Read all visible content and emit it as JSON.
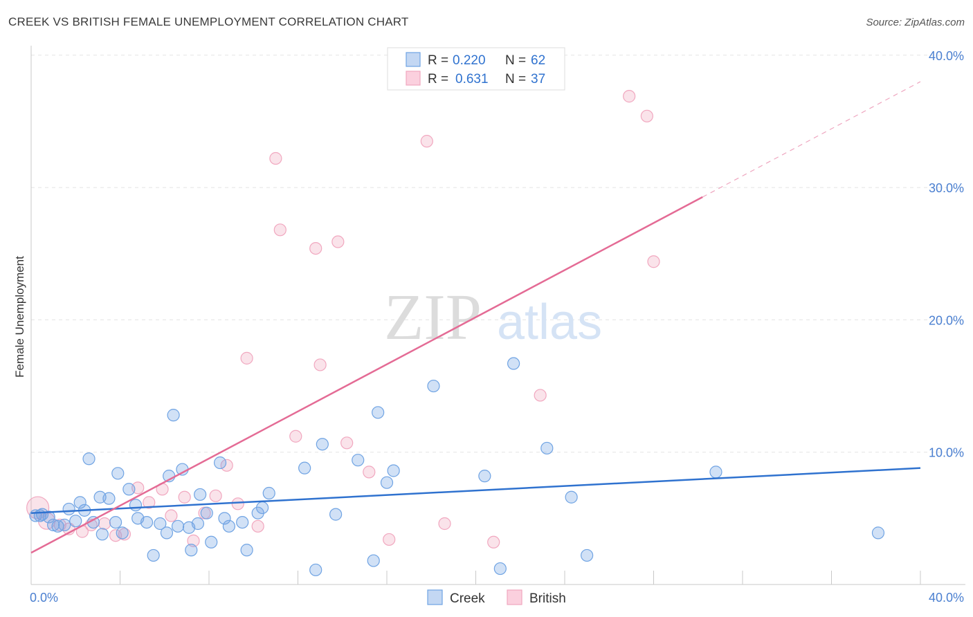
{
  "header": {
    "title": "CREEK VS BRITISH FEMALE UNEMPLOYMENT CORRELATION CHART",
    "source": "Source: ZipAtlas.com"
  },
  "watermark": {
    "zip": "ZIP",
    "atlas": "atlas"
  },
  "colors": {
    "creek": "#6fa3e3",
    "creek_line": "#2f72cf",
    "british": "#f1a7bf",
    "british_line": "#e46b95",
    "tick": "#4a7fd0"
  },
  "legend": {
    "rows": [
      {
        "r_label": "R =",
        "r_value": "0.220",
        "n_label": "N =",
        "n_value": "62"
      },
      {
        "r_label": "R =",
        "r_value": "0.631",
        "n_label": "N =",
        "n_value": "37"
      }
    ]
  },
  "chart_data": {
    "type": "scatter",
    "title": "CREEK VS BRITISH FEMALE UNEMPLOYMENT CORRELATION CHART",
    "xlabel": "",
    "ylabel": "Female Unemployment",
    "xlim": [
      0,
      40
    ],
    "ylim": [
      0,
      41
    ],
    "x_tick_labels": [
      {
        "value": 0,
        "label": "0.0%"
      },
      {
        "value": 40,
        "label": "40.0%"
      }
    ],
    "y_tick_labels": [
      {
        "value": 10,
        "label": "10.0%"
      },
      {
        "value": 20,
        "label": "20.0%"
      },
      {
        "value": 30,
        "label": "30.0%"
      },
      {
        "value": 40,
        "label": "40.0%"
      }
    ],
    "grid": true,
    "legend_position": "bottom",
    "series": [
      {
        "name": "Creek",
        "r": 0.22,
        "n": 62,
        "trend": {
          "x0": 0,
          "y0": 5.4,
          "x1": 40,
          "y1": 8.8
        },
        "points": [
          {
            "x": 0.2,
            "y": 5.2
          },
          {
            "x": 0.5,
            "y": 5.3
          },
          {
            "x": 0.8,
            "y": 5.1
          },
          {
            "x": 1.0,
            "y": 4.5
          },
          {
            "x": 1.5,
            "y": 4.5
          },
          {
            "x": 1.7,
            "y": 5.7
          },
          {
            "x": 2.0,
            "y": 4.8
          },
          {
            "x": 2.2,
            "y": 6.2
          },
          {
            "x": 2.4,
            "y": 5.6
          },
          {
            "x": 2.6,
            "y": 9.5
          },
          {
            "x": 2.8,
            "y": 4.7
          },
          {
            "x": 3.1,
            "y": 6.6
          },
          {
            "x": 3.2,
            "y": 3.8
          },
          {
            "x": 3.5,
            "y": 6.5
          },
          {
            "x": 3.8,
            "y": 4.7
          },
          {
            "x": 3.9,
            "y": 8.4
          },
          {
            "x": 4.1,
            "y": 3.9
          },
          {
            "x": 4.4,
            "y": 7.2
          },
          {
            "x": 4.7,
            "y": 6.0
          },
          {
            "x": 4.8,
            "y": 5.0
          },
          {
            "x": 5.2,
            "y": 4.7
          },
          {
            "x": 5.5,
            "y": 2.2
          },
          {
            "x": 5.8,
            "y": 4.6
          },
          {
            "x": 6.1,
            "y": 3.9
          },
          {
            "x": 6.2,
            "y": 8.2
          },
          {
            "x": 6.4,
            "y": 12.8
          },
          {
            "x": 6.6,
            "y": 4.4
          },
          {
            "x": 6.8,
            "y": 8.7
          },
          {
            "x": 7.1,
            "y": 4.3
          },
          {
            "x": 7.2,
            "y": 2.6
          },
          {
            "x": 7.5,
            "y": 4.6
          },
          {
            "x": 7.6,
            "y": 6.8
          },
          {
            "x": 7.9,
            "y": 5.4
          },
          {
            "x": 8.1,
            "y": 3.2
          },
          {
            "x": 8.5,
            "y": 9.2
          },
          {
            "x": 8.7,
            "y": 5.0
          },
          {
            "x": 8.9,
            "y": 4.4
          },
          {
            "x": 9.5,
            "y": 4.7
          },
          {
            "x": 9.7,
            "y": 2.6
          },
          {
            "x": 10.2,
            "y": 5.4
          },
          {
            "x": 10.4,
            "y": 5.8
          },
          {
            "x": 10.7,
            "y": 6.9
          },
          {
            "x": 12.3,
            "y": 8.8
          },
          {
            "x": 12.8,
            "y": 1.1
          },
          {
            "x": 13.1,
            "y": 10.6
          },
          {
            "x": 13.7,
            "y": 5.3
          },
          {
            "x": 14.7,
            "y": 9.4
          },
          {
            "x": 15.4,
            "y": 1.8
          },
          {
            "x": 15.6,
            "y": 13.0
          },
          {
            "x": 16.0,
            "y": 7.7
          },
          {
            "x": 16.3,
            "y": 8.6
          },
          {
            "x": 18.1,
            "y": 15.0
          },
          {
            "x": 20.4,
            "y": 8.2
          },
          {
            "x": 21.1,
            "y": 1.2
          },
          {
            "x": 21.7,
            "y": 16.7
          },
          {
            "x": 23.2,
            "y": 10.3
          },
          {
            "x": 24.3,
            "y": 6.6
          },
          {
            "x": 25.0,
            "y": 2.2
          },
          {
            "x": 30.8,
            "y": 8.5
          },
          {
            "x": 38.1,
            "y": 3.9
          },
          {
            "x": 0.4,
            "y": 5.2
          },
          {
            "x": 1.2,
            "y": 4.4
          }
        ]
      },
      {
        "name": "British",
        "r": 0.631,
        "n": 37,
        "trend": {
          "x0": 0,
          "y0": 2.4,
          "x1": 40,
          "y1": 38.0
        },
        "trend_solid_until_x": 30.2,
        "points": [
          {
            "x": 0.3,
            "y": 5.8
          },
          {
            "x": 0.7,
            "y": 4.8
          },
          {
            "x": 1.3,
            "y": 4.5
          },
          {
            "x": 1.7,
            "y": 4.2
          },
          {
            "x": 2.3,
            "y": 4.0
          },
          {
            "x": 2.7,
            "y": 4.5
          },
          {
            "x": 3.3,
            "y": 4.6
          },
          {
            "x": 3.8,
            "y": 3.7
          },
          {
            "x": 4.2,
            "y": 3.8
          },
          {
            "x": 4.8,
            "y": 7.3
          },
          {
            "x": 5.3,
            "y": 6.2
          },
          {
            "x": 5.9,
            "y": 7.2
          },
          {
            "x": 6.3,
            "y": 5.2
          },
          {
            "x": 6.9,
            "y": 6.6
          },
          {
            "x": 7.3,
            "y": 3.3
          },
          {
            "x": 7.8,
            "y": 5.4
          },
          {
            "x": 8.3,
            "y": 6.7
          },
          {
            "x": 8.8,
            "y": 9.0
          },
          {
            "x": 9.3,
            "y": 6.1
          },
          {
            "x": 9.7,
            "y": 17.1
          },
          {
            "x": 10.2,
            "y": 4.4
          },
          {
            "x": 11.0,
            "y": 32.2
          },
          {
            "x": 11.2,
            "y": 26.8
          },
          {
            "x": 11.9,
            "y": 11.2
          },
          {
            "x": 12.8,
            "y": 25.4
          },
          {
            "x": 13.0,
            "y": 16.6
          },
          {
            "x": 13.8,
            "y": 25.9
          },
          {
            "x": 14.2,
            "y": 10.7
          },
          {
            "x": 15.2,
            "y": 8.5
          },
          {
            "x": 16.1,
            "y": 3.4
          },
          {
            "x": 17.8,
            "y": 33.5
          },
          {
            "x": 18.6,
            "y": 4.6
          },
          {
            "x": 20.8,
            "y": 3.2
          },
          {
            "x": 22.9,
            "y": 14.3
          },
          {
            "x": 26.9,
            "y": 36.9
          },
          {
            "x": 27.7,
            "y": 35.4
          },
          {
            "x": 28.0,
            "y": 24.4
          }
        ]
      }
    ]
  },
  "bottom_legend": {
    "items": [
      {
        "label": "Creek"
      },
      {
        "label": "British"
      }
    ]
  }
}
